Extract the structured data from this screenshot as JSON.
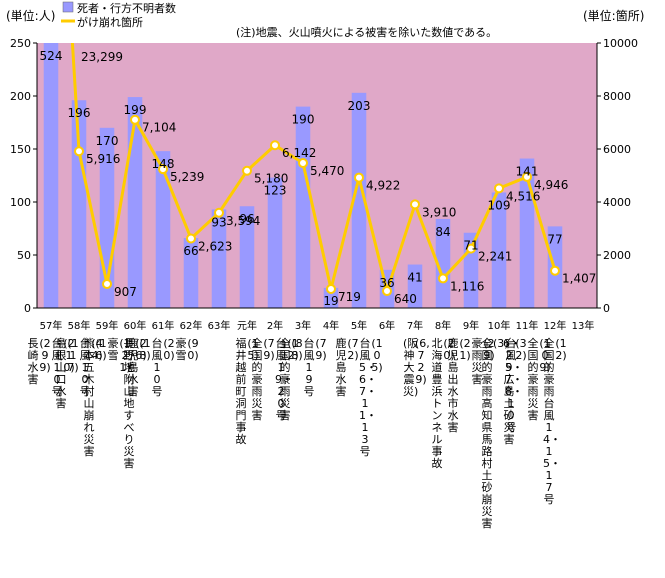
{
  "chart_data": {
    "type": "bar+line",
    "left_unit": "(単位:人)",
    "right_unit": "(単位:箇所)",
    "note": "(注)地震、火山噴火による被害を除いた数値である。",
    "legend": [
      "死者・行方不明者数",
      "がけ崩れ箇所"
    ],
    "left_ticks": [
      "0",
      "50",
      "100",
      "150",
      "200",
      "250"
    ],
    "right_ticks": [
      "0",
      "2000",
      "4000",
      "6000",
      "8000",
      "10000"
    ],
    "left_ylim": [
      0,
      250
    ],
    "right_ylim": [
      0,
      10000
    ],
    "colors": {
      "bar": "#9999ff",
      "line": "#ffcc00",
      "plot_bg": "#e0a8c8",
      "point": "#ffffff"
    },
    "categories": [
      "57年",
      "58年",
      "59年",
      "60年",
      "61年",
      "62年",
      "63年",
      "元年",
      "2年",
      "3年",
      "4年",
      "5年",
      "6年",
      "7年",
      "8年",
      "9年",
      "10年",
      "11年",
      "12年",
      "13年"
    ],
    "series": [
      {
        "name": "死者・行方不明者数",
        "values": [
          524,
          196,
          170,
          199,
          148,
          66,
          93,
          96,
          123,
          190,
          19,
          203,
          36,
          41,
          84,
          71,
          109,
          141,
          77,
          null
        ]
      },
      {
        "name": "がけ崩れ箇所",
        "values": [
          23299,
          5916,
          907,
          7104,
          5239,
          2623,
          3594,
          5180,
          6142,
          5470,
          719,
          4922,
          640,
          3910,
          1116,
          2241,
          4516,
          4946,
          1407,
          null
        ]
      }
    ],
    "bar_labels": [
      "524",
      "196",
      "170",
      "199",
      "148",
      "66",
      "93",
      "96",
      "123",
      "190",
      "19",
      "203",
      "36",
      "41",
      "84",
      "71",
      "109",
      "141",
      "77",
      ""
    ],
    "line_labels": [
      "23,299",
      "5,916",
      "907",
      "7,104",
      "5,239",
      "2,623",
      "3,594",
      "5,180",
      "6,142",
      "5,470",
      "719",
      "4,922",
      "640",
      "3,910",
      "1,116",
      "2,241",
      "4,516",
      "4,946",
      "1,407",
      ""
    ],
    "events": [
      [
        "長崎水害",
        "(299)",
        "台風10号",
        "(210)"
      ],
      [
        "島根山口水害",
        "(117)",
        "台風10号",
        "(44)"
      ],
      [
        "熊本五木村山崩れ災害",
        "(16)",
        "豪雪",
        "(121)"
      ],
      [
        "長野地附山地すべり災害",
        "(26)"
      ],
      [
        "鹿児島水害",
        "(18)",
        "台風10号",
        "(20)",
        "豪雪",
        "(90)"
      ],
      [],
      [],
      [
        "福井越前町洞門事故",
        "(15)"
      ],
      [
        "全国的豪雨災害",
        "(79)",
        "台風19・20号",
        "(12)"
      ],
      [
        "全国的豪雨災害",
        "(88)",
        "台風19号",
        "(79)"
      ],
      [],
      [
        "鹿児島水害",
        "(72)",
        "台風5・6・7・11・13号",
        "(105)"
      ],
      [],
      [
        "(阪神大震災)",
        "(6,729)"
      ],
      [
        "北海道豊浜トンネル事故",
        "(20)"
      ],
      [
        "鹿児島出水市水害",
        "(21)",
        "豪雨災害",
        "(29)"
      ],
      [
        "全国的豪雨高知県馬路村土砂崩災害",
        "(3)",
        "台風5・7・8・10号"
      ],
      [
        "6・29広島土砂災害",
        "(32)",
        "全国的豪雨災害",
        "(109)"
      ],
      [
        "全国的豪雨台風14・15・17号",
        "(12)"
      ],
      []
    ]
  }
}
